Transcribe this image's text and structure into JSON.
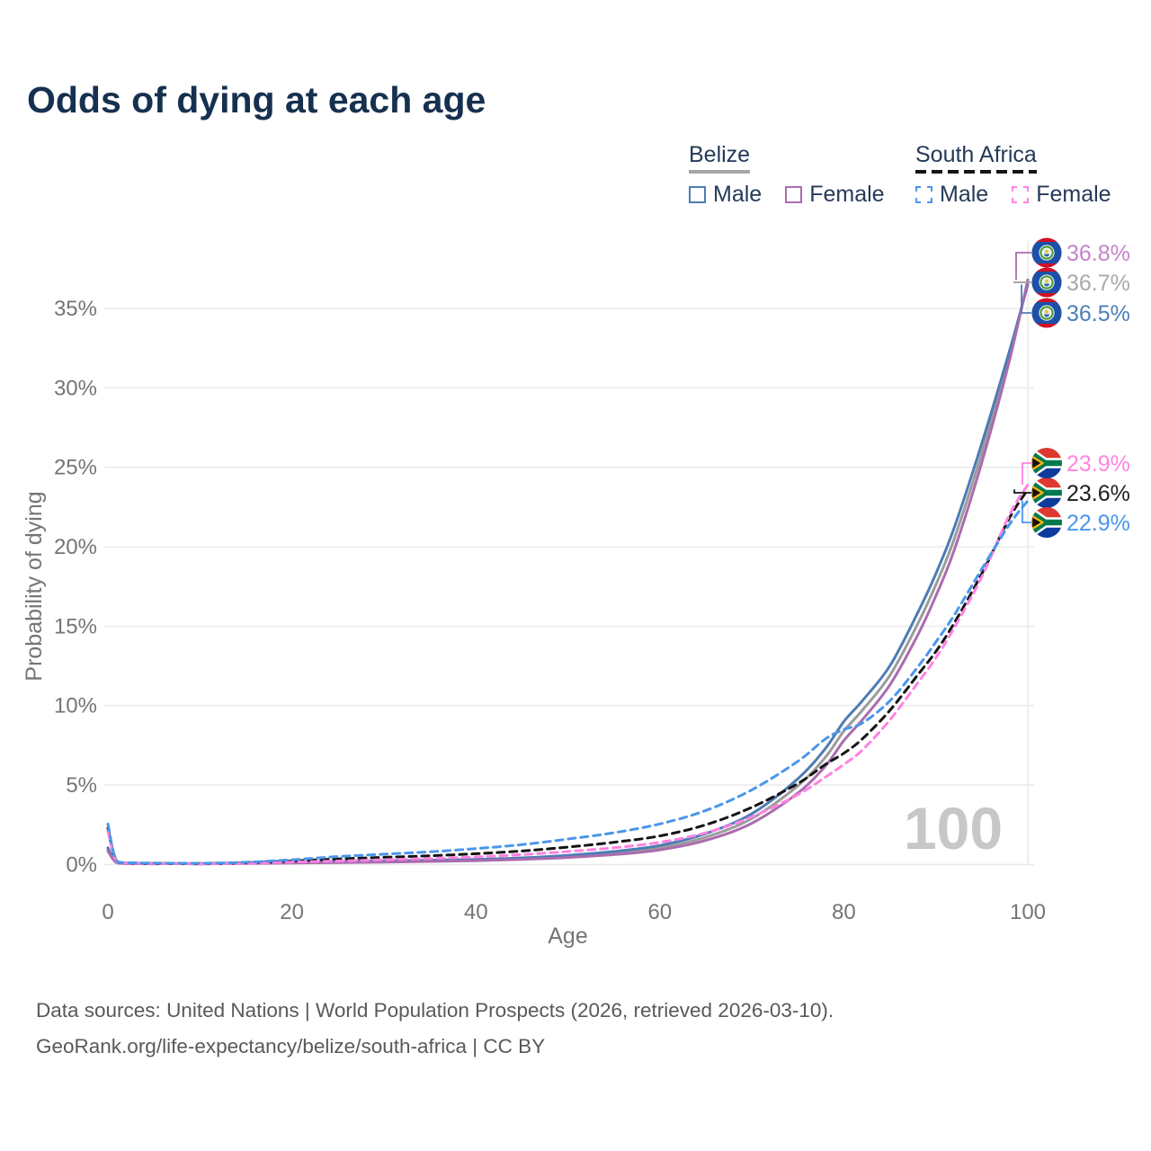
{
  "title": "Odds of dying at each age",
  "legend": {
    "groups": [
      {
        "label": "Belize",
        "line_style": "solid",
        "line_color": "#a6a6a6",
        "items": [
          {
            "label": "Male",
            "style": "solid",
            "color": "#4d7cb5"
          },
          {
            "label": "Female",
            "style": "solid",
            "color": "#ab6caf"
          }
        ]
      },
      {
        "label": "South Africa",
        "line_style": "dashed",
        "line_color": "#141414",
        "items": [
          {
            "label": "Male",
            "style": "dashed",
            "color": "#4b96ea"
          },
          {
            "label": "Female",
            "style": "dashed",
            "color": "#ff82e2"
          }
        ]
      }
    ]
  },
  "chart_data": {
    "type": "line",
    "title": "Odds of dying at each age",
    "xlabel": "Age",
    "ylabel": "Probability of dying",
    "x_ticks": [
      "0",
      "20",
      "40",
      "60",
      "80",
      "100"
    ],
    "y_ticks": [
      "0%",
      "5%",
      "10%",
      "15%",
      "20%",
      "25%",
      "30%",
      "35%"
    ],
    "xlim": [
      0,
      100
    ],
    "ylim": [
      0,
      39
    ],
    "grid": "horizontal-only",
    "legend_position": "top-right",
    "hover_age_label": "100",
    "x": [
      0,
      1,
      3,
      5,
      10,
      15,
      20,
      25,
      30,
      35,
      40,
      45,
      50,
      55,
      60,
      65,
      70,
      75,
      78,
      80,
      82,
      85,
      88,
      90,
      92,
      95,
      98,
      100
    ],
    "series": [
      {
        "id": "belize_total",
        "name": "Belize (total)",
        "country": "Belize",
        "sex": "All",
        "style": "solid",
        "color": "#9b9b9b",
        "label_color": "#a9a9a9",
        "flag": "belize",
        "end_label": "36.7%",
        "values": [
          0.95,
          0.11,
          0.05,
          0.05,
          0.04,
          0.08,
          0.13,
          0.16,
          0.19,
          0.23,
          0.28,
          0.37,
          0.5,
          0.72,
          1.05,
          1.72,
          2.9,
          4.95,
          6.75,
          8.4,
          9.7,
          11.9,
          15.1,
          17.6,
          20.5,
          25.9,
          32.0,
          36.7
        ]
      },
      {
        "id": "belize_male",
        "name": "Belize Male",
        "country": "Belize",
        "sex": "Male",
        "style": "solid",
        "color": "#4d7cb5",
        "label_color": "#4d7eb8",
        "flag": "belize",
        "end_label": "36.5%",
        "values": [
          1.05,
          0.12,
          0.06,
          0.05,
          0.05,
          0.1,
          0.16,
          0.2,
          0.23,
          0.27,
          0.32,
          0.42,
          0.58,
          0.82,
          1.2,
          1.95,
          3.2,
          5.4,
          7.3,
          9.0,
          10.3,
          12.5,
          15.8,
          18.3,
          21.2,
          26.5,
          32.3,
          36.5
        ]
      },
      {
        "id": "belize_female",
        "name": "Belize Female",
        "country": "Belize",
        "sex": "Female",
        "style": "solid",
        "color": "#ab6caf",
        "label_color": "#c583c9",
        "flag": "belize",
        "end_label": "36.8%",
        "values": [
          0.85,
          0.1,
          0.05,
          0.04,
          0.04,
          0.06,
          0.09,
          0.12,
          0.15,
          0.19,
          0.24,
          0.32,
          0.44,
          0.62,
          0.92,
          1.52,
          2.6,
          4.5,
          6.2,
          7.8,
          9.1,
          11.3,
          14.4,
          16.9,
          19.8,
          25.3,
          31.7,
          36.8
        ]
      },
      {
        "id": "sa_total",
        "name": "South Africa (total)",
        "country": "South Africa",
        "sex": "All",
        "style": "dashed",
        "color": "#141414",
        "label_color": "#1f1f1f",
        "flag": "south-africa",
        "end_label": "23.6%",
        "values": [
          2.3,
          0.18,
          0.09,
          0.07,
          0.06,
          0.11,
          0.22,
          0.35,
          0.45,
          0.55,
          0.68,
          0.85,
          1.1,
          1.4,
          1.8,
          2.5,
          3.6,
          5.1,
          6.3,
          7.0,
          7.9,
          9.7,
          11.9,
          13.4,
          15.2,
          18.3,
          21.8,
          23.6
        ]
      },
      {
        "id": "sa_female",
        "name": "South Africa Female",
        "country": "South Africa",
        "sex": "Female",
        "style": "dashed",
        "color": "#ff82e2",
        "label_color": "#ff85e0",
        "flag": "south-africa",
        "end_label": "23.9%",
        "values": [
          2.1,
          0.16,
          0.08,
          0.06,
          0.05,
          0.08,
          0.15,
          0.22,
          0.3,
          0.38,
          0.48,
          0.62,
          0.82,
          1.05,
          1.4,
          2.0,
          3.0,
          4.4,
          5.5,
          6.3,
          7.2,
          9.1,
          11.4,
          13.0,
          14.9,
          18.1,
          22.0,
          23.9
        ]
      },
      {
        "id": "sa_male",
        "name": "South Africa Male",
        "country": "South Africa",
        "sex": "Male",
        "style": "dashed",
        "color": "#4b96ea",
        "label_color": "#4b96ea",
        "flag": "south-africa",
        "end_label": "22.9%",
        "values": [
          2.55,
          0.2,
          0.11,
          0.09,
          0.08,
          0.14,
          0.3,
          0.5,
          0.65,
          0.8,
          1.0,
          1.25,
          1.6,
          2.0,
          2.55,
          3.4,
          4.7,
          6.5,
          7.9,
          8.5,
          8.9,
          10.3,
          12.4,
          14.0,
          15.7,
          18.6,
          21.4,
          22.9
        ]
      }
    ]
  },
  "footer": {
    "line1": "Data sources: United Nations | World Population Prospects (2026, retrieved 2026-03-10).",
    "line2": "GeoRank.org/life-expectancy/belize/south-africa | CC BY"
  }
}
